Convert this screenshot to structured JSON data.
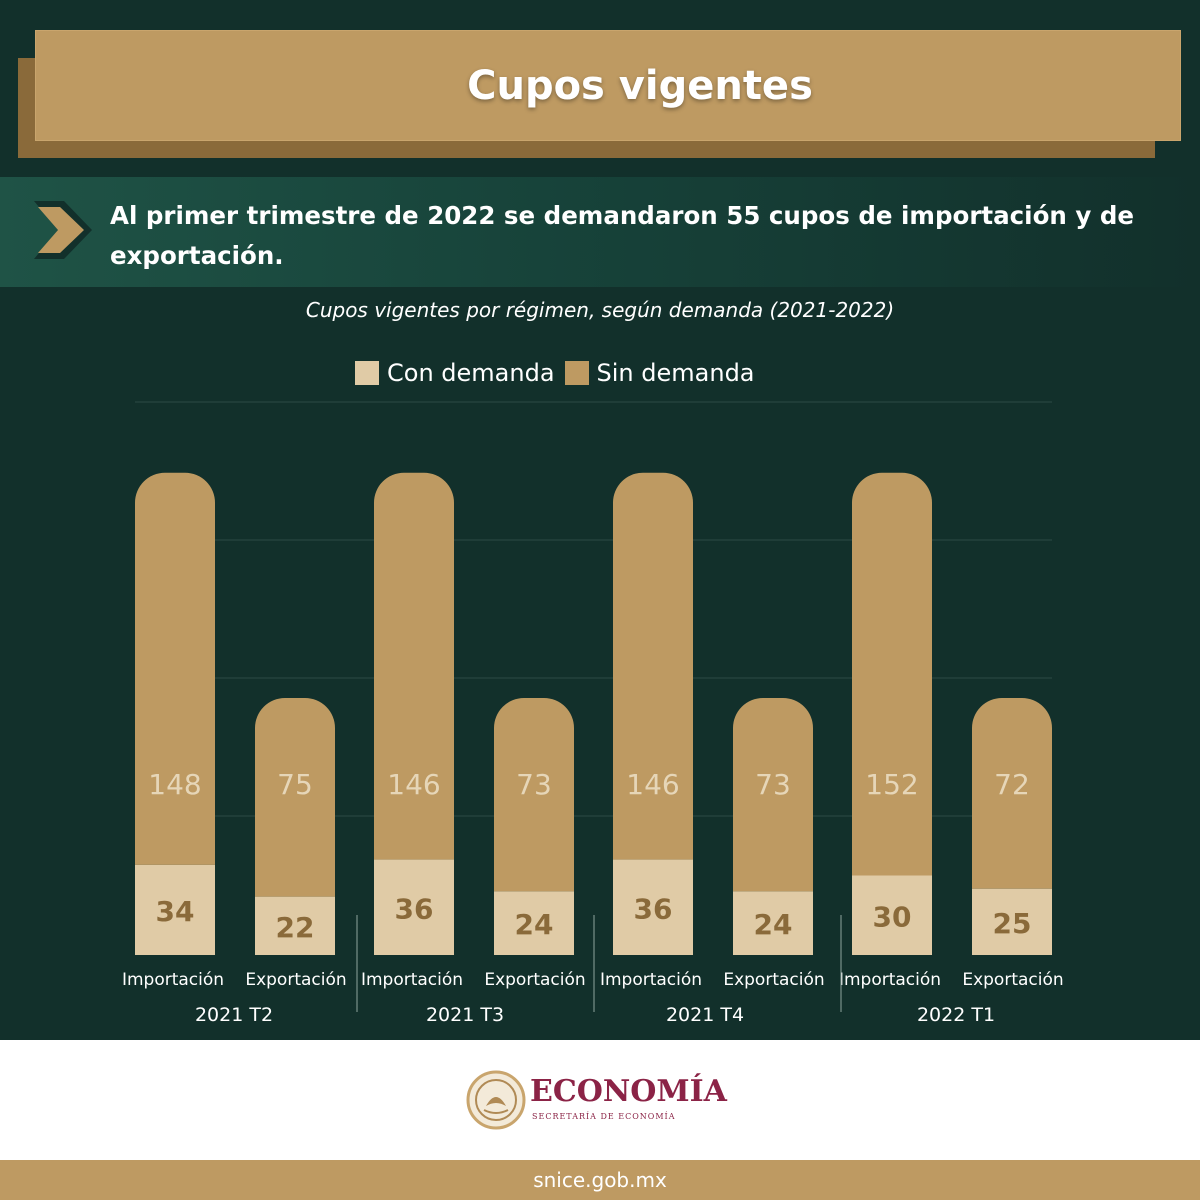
{
  "header": {
    "title": "Cupos vigentes"
  },
  "callout": {
    "icon": "chevron-right-icon",
    "text": "Al primer trimestre de 2022 se demandaron 55 cupos de importación y de exportación."
  },
  "colors": {
    "background": "#12302b",
    "banner": "#be9a62",
    "con_demanda": "#e0cba6",
    "sin_demanda": "#be9a62",
    "brand": "#8b2346"
  },
  "chart_data": {
    "type": "bar",
    "stacked": true,
    "title": "Cupos vigentes por régimen, según demanda (2021-2022)",
    "legend": {
      "placement": "top",
      "entries": [
        "Con demanda",
        "Sin demanda"
      ]
    },
    "groups": [
      "2021 T2",
      "2021 T3",
      "2021 T4",
      "2022 T1"
    ],
    "subcategories": [
      "Importación",
      "Exportación"
    ],
    "series": [
      {
        "name": "Con demanda",
        "values": [
          34,
          22,
          36,
          24,
          36,
          24,
          30,
          25
        ]
      },
      {
        "name": "Sin demanda",
        "values": [
          148,
          75,
          146,
          73,
          146,
          73,
          152,
          72
        ]
      }
    ],
    "grid": true
  },
  "footer": {
    "logo_text": "ECONOMÍA",
    "logo_subtitle": "SECRETARÍA DE ECONOMÍA",
    "url": "snice.gob.mx"
  }
}
